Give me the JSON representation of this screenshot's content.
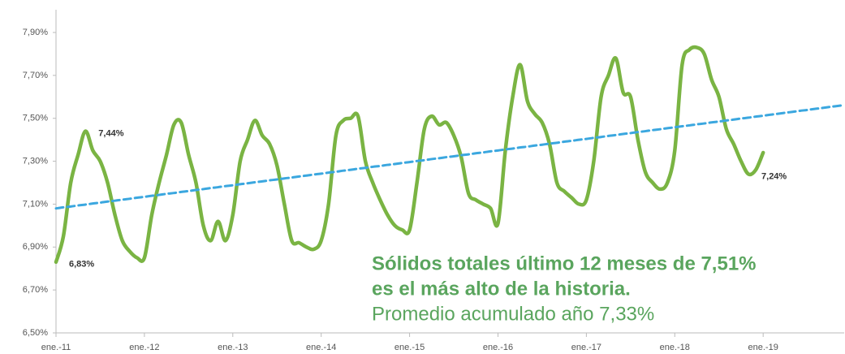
{
  "chart_data": {
    "type": "line",
    "categories": [
      "ene.-11",
      null,
      null,
      null,
      null,
      null,
      null,
      null,
      null,
      null,
      null,
      null,
      "ene.-12",
      null,
      null,
      null,
      null,
      null,
      null,
      null,
      null,
      null,
      null,
      null,
      "ene.-13",
      null,
      null,
      null,
      null,
      null,
      null,
      null,
      null,
      null,
      null,
      null,
      "ene.-14",
      null,
      null,
      null,
      null,
      null,
      null,
      null,
      null,
      null,
      null,
      null,
      "ene.-15",
      null,
      null,
      null,
      null,
      null,
      null,
      null,
      null,
      null,
      null,
      null,
      "ene.-16",
      null,
      null,
      null,
      null,
      null,
      null,
      null,
      null,
      null,
      null,
      null,
      "ene.-17",
      null,
      null,
      null,
      null,
      null,
      null,
      null,
      null,
      null,
      null,
      null,
      "ene.-18",
      null,
      null,
      null,
      null,
      null,
      null,
      null,
      null,
      null,
      null,
      null,
      "ene.-19",
      null,
      null,
      null,
      null,
      null,
      null,
      null,
      null,
      null,
      null,
      null
    ],
    "series": [
      {
        "color": "#7ab443",
        "values": [
          6.83,
          6.95,
          7.2,
          7.33,
          7.44,
          7.35,
          7.3,
          7.2,
          7.05,
          6.93,
          6.88,
          6.85,
          6.85,
          7.05,
          7.2,
          7.33,
          7.47,
          7.48,
          7.33,
          7.2,
          7.0,
          6.93,
          7.02,
          6.93,
          7.05,
          7.3,
          7.4,
          7.49,
          7.42,
          7.38,
          7.28,
          7.1,
          6.93,
          6.92,
          6.9,
          6.89,
          6.93,
          7.1,
          7.42,
          7.49,
          7.5,
          7.51,
          7.3,
          7.2,
          7.12,
          7.05,
          7.0,
          6.98,
          6.98,
          7.2,
          7.45,
          7.51,
          7.47,
          7.48,
          7.42,
          7.32,
          7.15,
          7.12,
          7.1,
          7.08,
          7.01,
          7.35,
          7.6,
          7.75,
          7.58,
          7.52,
          7.48,
          7.38,
          7.2,
          7.16,
          7.13,
          7.1,
          7.12,
          7.3,
          7.6,
          7.7,
          7.78,
          7.62,
          7.6,
          7.4,
          7.25,
          7.2,
          7.17,
          7.2,
          7.35,
          7.75,
          7.82,
          7.83,
          7.8,
          7.68,
          7.6,
          7.45,
          7.38,
          7.3,
          7.24,
          7.26,
          7.34,
          null,
          null,
          null,
          null,
          null,
          null,
          null,
          null,
          null,
          null,
          null
        ],
        "value_labels": [
          "6,83%",
          null,
          null,
          null,
          "7,44%",
          null,
          null,
          null,
          null,
          null,
          null,
          null,
          null,
          null,
          null,
          null,
          null,
          null,
          null,
          null,
          null,
          null,
          null,
          null,
          null,
          null,
          null,
          null,
          null,
          null,
          null,
          null,
          null,
          null,
          null,
          null,
          null,
          null,
          null,
          null,
          null,
          null,
          null,
          null,
          null,
          null,
          null,
          null,
          null,
          null,
          null,
          null,
          null,
          null,
          null,
          null,
          null,
          null,
          null,
          null,
          null,
          null,
          null,
          null,
          null,
          null,
          null,
          null,
          null,
          null,
          null,
          null,
          null,
          null,
          null,
          null,
          null,
          null,
          null,
          null,
          null,
          null,
          null,
          null,
          null,
          null,
          null,
          null,
          null,
          null,
          null,
          null,
          null,
          null,
          "7,24%",
          null,
          null,
          null,
          null,
          null,
          null,
          null,
          null,
          null,
          null,
          null,
          null,
          null
        ]
      },
      {
        "color": "#3ba7df",
        "dashed": true,
        "values": [
          7.08,
          7.085,
          7.089,
          7.094,
          7.098,
          7.103,
          7.107,
          7.112,
          7.116,
          7.121,
          7.125,
          7.13,
          7.134,
          7.139,
          7.143,
          7.148,
          7.152,
          7.157,
          7.161,
          7.166,
          7.17,
          7.175,
          7.179,
          7.184,
          7.188,
          7.193,
          7.197,
          7.202,
          7.206,
          7.211,
          7.215,
          7.22,
          7.224,
          7.229,
          7.233,
          7.238,
          7.242,
          7.247,
          7.251,
          7.256,
          7.26,
          7.265,
          7.269,
          7.274,
          7.278,
          7.283,
          7.287,
          7.292,
          7.296,
          7.301,
          7.305,
          7.31,
          7.314,
          7.319,
          7.323,
          7.328,
          7.332,
          7.337,
          7.341,
          7.346,
          7.35,
          7.355,
          7.359,
          7.364,
          7.368,
          7.373,
          7.377,
          7.382,
          7.386,
          7.391,
          7.395,
          7.4,
          7.404,
          7.409,
          7.413,
          7.418,
          7.422,
          7.427,
          7.431,
          7.436,
          7.44,
          7.445,
          7.449,
          7.454,
          7.458,
          7.463,
          7.467,
          7.472,
          7.476,
          7.481,
          7.485,
          7.49,
          7.494,
          7.499,
          7.503,
          7.508,
          7.512,
          7.517,
          7.521,
          7.526,
          7.53,
          7.535,
          7.539,
          7.544,
          7.548,
          7.553,
          7.557,
          7.562
        ]
      }
    ],
    "ylim": [
      6.5,
      7.9
    ],
    "yticks": [
      {
        "value": 6.5,
        "label": "6,50%"
      },
      {
        "value": 6.7,
        "label": "6,70%"
      },
      {
        "value": 6.9,
        "label": "6,90%"
      },
      {
        "value": 7.1,
        "label": "7,10%"
      },
      {
        "value": 7.3,
        "label": "7,30%"
      },
      {
        "value": 7.5,
        "label": "7,50%"
      },
      {
        "value": 7.7,
        "label": "7,70%"
      },
      {
        "value": 7.9,
        "label": "7,90%"
      }
    ],
    "grid": false,
    "text_block": [
      "Sólidos totales último 12 meses de 7,51%",
      "es el más alto de la historia.",
      "Promedio acumulado año 7,33%"
    ]
  }
}
